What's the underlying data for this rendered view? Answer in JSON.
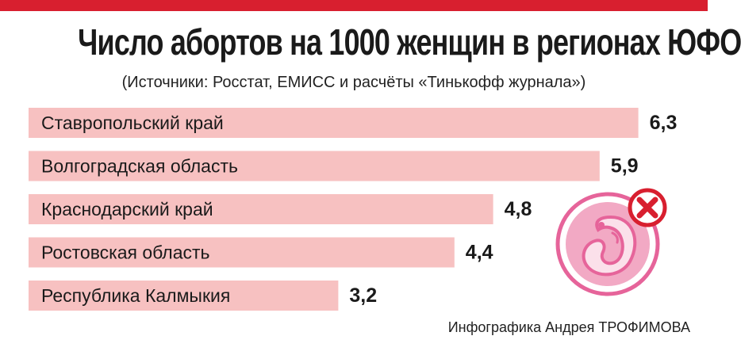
{
  "header": {
    "title": "Число абортов на 1000 женщин в регионах ЮФО",
    "subtitle": "(Источники: Росстат, ЕМИСС и расчёты «Тинькофф журнала»)"
  },
  "footer": {
    "credit": "Инфографика Андрея ТРОФИМОВА"
  },
  "colors": {
    "accent": "#d81f2f",
    "bar": "#f7c1c1",
    "icon_pink": "#e6649a",
    "icon_red": "#d81f2f"
  },
  "icon": "fetus-crossed-icon",
  "chart_data": {
    "type": "bar",
    "orientation": "horizontal",
    "categories": [
      "Ставропольский край",
      "Волгоградская область",
      "Краснодарский край",
      "Ростовская область",
      "Республика Калмыкия"
    ],
    "values": [
      6.3,
      5.9,
      4.8,
      4.4,
      3.2
    ],
    "labels": [
      "6,3",
      "5,9",
      "4,8",
      "4,4",
      "3,2"
    ],
    "title": "Число абортов на 1000 женщин в регионах ЮФО",
    "grid": false
  }
}
